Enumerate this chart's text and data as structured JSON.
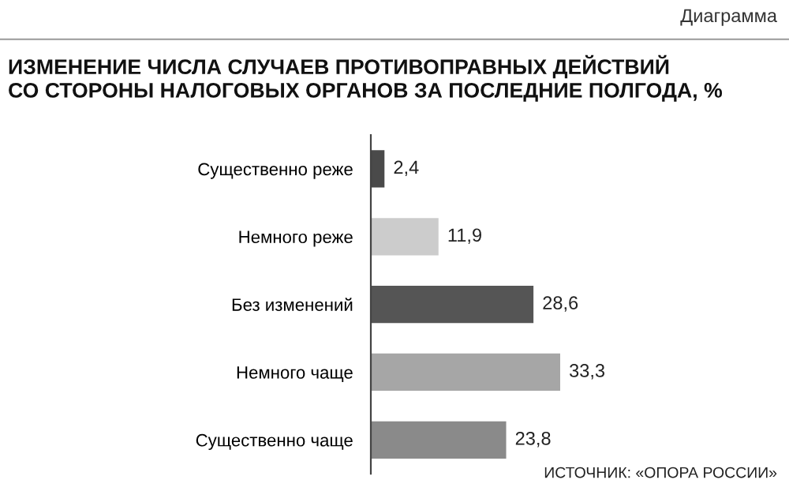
{
  "chart_data": {
    "type": "bar",
    "orientation": "horizontal",
    "title": "ИЗМЕНЕНИЕ ЧИСЛА СЛУЧАЕВ ПРОТИВОПРАВНЫХ ДЕЙСТВИЙ\nСО СТОРОНЫ НАЛОГОВЫХ ОРГАНОВ ЗА ПОСЛЕДНИЕ ПОЛГОДА, %",
    "subtitle": "Диаграмма",
    "categories": [
      "Существенно реже",
      "Немного реже",
      "Без изменений",
      "Немного чаще",
      "Существенно чаще"
    ],
    "values": [
      2.4,
      11.9,
      28.6,
      33.3,
      23.8
    ],
    "colors": [
      "#4a4a4a",
      "#cccccc",
      "#555555",
      "#a6a6a6",
      "#8a8a8a"
    ],
    "value_labels": [
      "2,4",
      "11,9",
      "28,6",
      "33,3",
      "23,8"
    ],
    "annotations": [
      "ИСТОЧНИК: «ОПОРА РОССИИ»"
    ],
    "grid": false,
    "legend": false
  }
}
